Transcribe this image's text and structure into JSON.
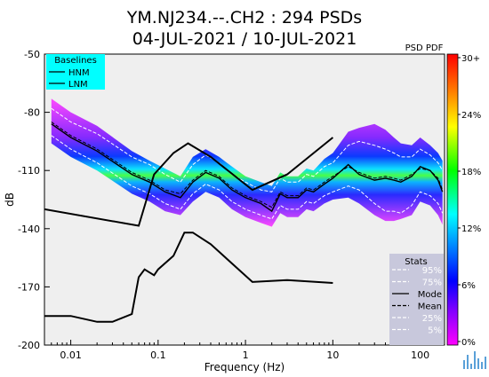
{
  "chart_data": {
    "type": "heatmap",
    "title": "YM.NJ234.--.CH2 : 294 PSDs",
    "subtitle": "04-JUL-2021 / 10-JUL-2021",
    "xlabel": "Frequency (Hz)",
    "ylabel": "dB",
    "x_scale": "log",
    "xlim": [
      0.005,
      190
    ],
    "ylim": [
      -200,
      -50
    ],
    "x_ticks": [
      {
        "value": 0.01,
        "label": "0.01"
      },
      {
        "value": 0.1,
        "label": "0.1"
      },
      {
        "value": 1,
        "label": "1"
      },
      {
        "value": 10,
        "label": "10"
      },
      {
        "value": 100,
        "label": "100"
      }
    ],
    "y_ticks": [
      {
        "value": -50,
        "label": "-50"
      },
      {
        "value": -80,
        "label": "-80"
      },
      {
        "value": -110,
        "label": "-110"
      },
      {
        "value": -140,
        "label": "-140"
      },
      {
        "value": -170,
        "label": "-170"
      },
      {
        "value": -200,
        "label": "-200"
      }
    ],
    "colorbar": {
      "title": "PSD PDF",
      "ticks": [
        "30+",
        "24%",
        "18%",
        "12%",
        "6%",
        "0%"
      ],
      "colors": [
        "#ff0000",
        "#ff8000",
        "#ffff00",
        "#00ff00",
        "#00ffff",
        "#0070ff",
        "#0000ff",
        "#8000ff",
        "#ff00ff"
      ]
    },
    "baselines_legend": {
      "title": "Baselines",
      "items": [
        "HNM",
        "LNM"
      ],
      "background": "#00ffff"
    },
    "stats_legend": {
      "title": "Stats",
      "items": [
        {
          "label": "95%",
          "style": "dashed",
          "color": "#ffffff"
        },
        {
          "label": "75%",
          "style": "dashed",
          "color": "#ffffff"
        },
        {
          "label": "Mode",
          "style": "solid",
          "color": "#000000"
        },
        {
          "label": "Mean",
          "style": "dashed",
          "color": "#000000"
        },
        {
          "label": "25%",
          "style": "dashed",
          "color": "#ffffff"
        },
        {
          "label": "5%",
          "style": "dashed",
          "color": "#ffffff"
        }
      ],
      "background": "#c8c8dc"
    },
    "baselines": [
      {
        "name": "HNM",
        "x": [
          0.005,
          0.06,
          0.09,
          0.15,
          0.22,
          0.4,
          1.2,
          3,
          10
        ],
        "y": [
          -130,
          -138.5,
          -112,
          -101,
          -96,
          -103,
          -120,
          -112,
          -93
        ]
      },
      {
        "name": "LNM",
        "x": [
          0.005,
          0.01,
          0.02,
          0.03,
          0.05,
          0.06,
          0.07,
          0.09,
          0.1,
          0.15,
          0.2,
          0.25,
          0.4,
          1.2,
          3,
          10
        ],
        "y": [
          -185,
          -185,
          -188,
          -188,
          -184,
          -165,
          -161,
          -164,
          -161,
          -154,
          -142,
          -142,
          -148,
          -167.5,
          -166.5,
          -168
        ]
      }
    ],
    "series": [
      {
        "name": "Mode",
        "x": [
          0.006,
          0.01,
          0.02,
          0.05,
          0.08,
          0.12,
          0.18,
          0.25,
          0.35,
          0.5,
          0.7,
          1,
          1.5,
          2,
          2.5,
          3,
          4,
          5,
          6,
          8,
          10,
          15,
          20,
          30,
          40,
          50,
          60,
          80,
          100,
          130,
          160,
          180
        ],
        "y": [
          -86,
          -93,
          -100,
          -112,
          -116,
          -121,
          -124,
          -116,
          -111,
          -114,
          -120,
          -124,
          -127,
          -131,
          -122,
          -124,
          -124,
          -120,
          -121,
          -117,
          -114,
          -107,
          -112,
          -115,
          -114,
          -115,
          -116,
          -113,
          -108,
          -110,
          -115,
          -121
        ]
      },
      {
        "name": "Mean",
        "x": [
          0.006,
          0.01,
          0.02,
          0.05,
          0.08,
          0.12,
          0.18,
          0.25,
          0.35,
          0.5,
          0.7,
          1,
          1.5,
          2,
          2.5,
          3,
          4,
          5,
          6,
          8,
          10,
          15,
          20,
          30,
          40,
          50,
          60,
          80,
          100,
          130,
          160,
          180
        ],
        "y": [
          -85,
          -92,
          -99,
          -111,
          -115,
          -120,
          -122,
          -115,
          -110,
          -113,
          -119,
          -123,
          -126,
          -129,
          -121,
          -123,
          -123,
          -119,
          -120,
          -116,
          -113,
          -108,
          -111,
          -114,
          -113,
          -114,
          -115,
          -112,
          -109,
          -110,
          -114,
          -120
        ]
      },
      {
        "name": "95%",
        "x": [
          0.006,
          0.01,
          0.02,
          0.05,
          0.08,
          0.12,
          0.18,
          0.25,
          0.35,
          0.5,
          0.7,
          1,
          1.5,
          2,
          2.5,
          3,
          4,
          5,
          6,
          8,
          10,
          15,
          20,
          30,
          40,
          50,
          60,
          80,
          100,
          130,
          160,
          180
        ],
        "y": [
          -78,
          -85,
          -91,
          -103,
          -107,
          -112,
          -116,
          -107,
          -102,
          -106,
          -112,
          -116,
          -120,
          -121,
          -114,
          -116,
          -116,
          -112,
          -113,
          -108,
          -106,
          -97,
          -95,
          -97,
          -99,
          -101,
          -103,
          -103,
          -99,
          -102,
          -106,
          -110
        ]
      },
      {
        "name": "5%",
        "x": [
          0.006,
          0.01,
          0.02,
          0.05,
          0.08,
          0.12,
          0.18,
          0.25,
          0.35,
          0.5,
          0.7,
          1,
          1.5,
          2,
          2.5,
          3,
          4,
          5,
          6,
          8,
          10,
          15,
          20,
          30,
          40,
          50,
          60,
          80,
          100,
          130,
          160,
          180
        ],
        "y": [
          -92,
          -99,
          -106,
          -118,
          -122,
          -127,
          -130,
          -122,
          -117,
          -120,
          -126,
          -130,
          -133,
          -135,
          -128,
          -130,
          -130,
          -126,
          -127,
          -123,
          -121,
          -118,
          -120,
          -127,
          -131,
          -131,
          -132,
          -128,
          -121,
          -123,
          -127,
          -132
        ]
      }
    ],
    "density_envelope": {
      "x": [
        0.006,
        0.01,
        0.02,
        0.05,
        0.08,
        0.12,
        0.18,
        0.25,
        0.35,
        0.5,
        0.7,
        1,
        1.5,
        2,
        2.5,
        3,
        4,
        5,
        6,
        8,
        10,
        15,
        20,
        30,
        40,
        50,
        60,
        80,
        100,
        130,
        160,
        180
      ],
      "upper": [
        -73,
        -80,
        -87,
        -100,
        -105,
        -109,
        -113,
        -103,
        -99,
        -103,
        -108,
        -113,
        -116,
        -118,
        -111,
        -113,
        -113,
        -109,
        -110,
        -104,
        -101,
        -90,
        -88,
        -86,
        -89,
        -93,
        -96,
        -97,
        -93,
        -97,
        -101,
        -105
      ],
      "lower": [
        -96,
        -103,
        -110,
        -122,
        -126,
        -131,
        -133,
        -126,
        -121,
        -124,
        -130,
        -134,
        -137,
        -139,
        -132,
        -134,
        -134,
        -130,
        -131,
        -127,
        -125,
        -124,
        -127,
        -133,
        -136,
        -136,
        -135,
        -133,
        -126,
        -128,
        -133,
        -138
      ]
    }
  },
  "logo": {
    "name": "wave-logo-icon",
    "color": "#5aa0d8"
  }
}
